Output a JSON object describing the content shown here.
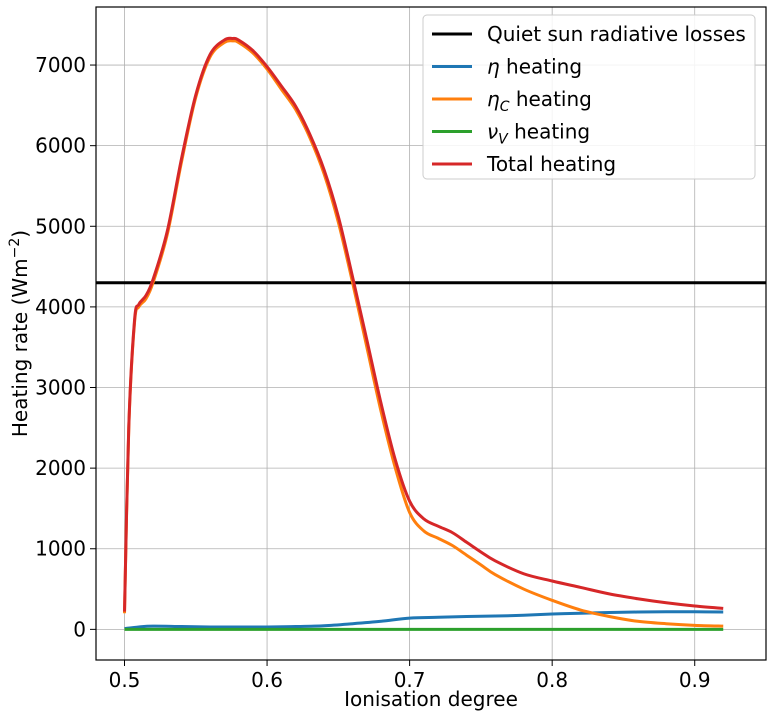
{
  "chart_data": {
    "type": "line",
    "title": "",
    "xlabel": "Ionisation degree",
    "ylabel": "Heating rate (Wm",
    "ylabel_sup": "−2",
    "ylabel_end": ")",
    "xlim": [
      0.48,
      0.95
    ],
    "ylim": [
      -380,
      7720
    ],
    "xticks": [
      0.5,
      0.6,
      0.7,
      0.8,
      0.9
    ],
    "xtick_labels": [
      "0.5",
      "0.6",
      "0.7",
      "0.8",
      "0.9"
    ],
    "yticks": [
      0,
      1000,
      2000,
      3000,
      4000,
      5000,
      6000,
      7000
    ],
    "ytick_labels": [
      "0",
      "1000",
      "2000",
      "3000",
      "4000",
      "5000",
      "6000",
      "7000"
    ],
    "grid": true,
    "legend_position": "top-right",
    "hline": {
      "name": "Quiet sun radiative losses",
      "y": 4300,
      "color": "#000000"
    },
    "series": [
      {
        "name": "η heating",
        "legend_sym": "η",
        "legend_sub": "",
        "legend_rest": " heating",
        "color": "#1f77b4",
        "x": [
          0.5,
          0.51,
          0.52,
          0.54,
          0.56,
          0.58,
          0.6,
          0.62,
          0.64,
          0.66,
          0.68,
          0.7,
          0.72,
          0.74,
          0.76,
          0.78,
          0.8,
          0.82,
          0.84,
          0.86,
          0.88,
          0.9,
          0.92
        ],
        "y": [
          10,
          30,
          40,
          35,
          30,
          30,
          30,
          35,
          45,
          70,
          100,
          140,
          150,
          160,
          165,
          175,
          190,
          200,
          210,
          215,
          218,
          218,
          215
        ]
      },
      {
        "name": "ηC heating",
        "legend_sym": "η",
        "legend_sub": "C",
        "legend_rest": " heating",
        "color": "#ff7f0e",
        "x": [
          0.5,
          0.503,
          0.507,
          0.51,
          0.515,
          0.52,
          0.53,
          0.54,
          0.55,
          0.56,
          0.57,
          0.576,
          0.58,
          0.59,
          0.6,
          0.61,
          0.62,
          0.63,
          0.64,
          0.65,
          0.66,
          0.67,
          0.68,
          0.69,
          0.7,
          0.71,
          0.72,
          0.73,
          0.74,
          0.75,
          0.76,
          0.78,
          0.8,
          0.82,
          0.84,
          0.86,
          0.88,
          0.9,
          0.92
        ],
        "y": [
          200,
          2500,
          3800,
          4000,
          4100,
          4300,
          4900,
          5800,
          6600,
          7100,
          7280,
          7300,
          7280,
          7150,
          6950,
          6700,
          6450,
          6100,
          5650,
          5050,
          4300,
          3500,
          2700,
          2000,
          1450,
          1220,
          1130,
          1040,
          920,
          800,
          680,
          500,
          360,
          240,
          160,
          100,
          70,
          50,
          40
        ]
      },
      {
        "name": "νV heating",
        "legend_sym": "ν",
        "legend_sub": "V",
        "legend_rest": " heating",
        "color": "#2ca02c",
        "x": [
          0.5,
          0.55,
          0.6,
          0.65,
          0.7,
          0.75,
          0.8,
          0.85,
          0.9,
          0.92
        ],
        "y": [
          0,
          0,
          0,
          0,
          0,
          0,
          0,
          0,
          0,
          0
        ]
      },
      {
        "name": "Total heating",
        "legend_sym": "",
        "legend_sub": "",
        "legend_rest": "Total heating",
        "color": "#d62728",
        "x": [
          0.5,
          0.503,
          0.507,
          0.51,
          0.515,
          0.52,
          0.53,
          0.54,
          0.55,
          0.56,
          0.57,
          0.576,
          0.58,
          0.59,
          0.6,
          0.61,
          0.62,
          0.63,
          0.64,
          0.65,
          0.66,
          0.67,
          0.68,
          0.69,
          0.7,
          0.71,
          0.72,
          0.73,
          0.74,
          0.75,
          0.76,
          0.78,
          0.8,
          0.82,
          0.84,
          0.86,
          0.88,
          0.9,
          0.92
        ],
        "y": [
          220,
          2520,
          3830,
          4030,
          4140,
          4340,
          4940,
          5840,
          6630,
          7130,
          7310,
          7330,
          7310,
          7180,
          6980,
          6740,
          6490,
          6140,
          5700,
          5120,
          4370,
          3590,
          2800,
          2100,
          1590,
          1370,
          1280,
          1200,
          1080,
          960,
          850,
          690,
          600,
          520,
          440,
          380,
          330,
          290,
          260
        ]
      }
    ]
  }
}
